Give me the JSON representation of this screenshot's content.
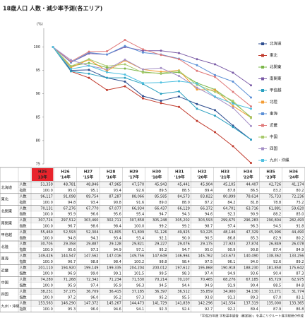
{
  "chart_data": {
    "type": "line",
    "title": "18歳人口 人数・減少率予測(各エリア)",
    "y_unit": "(%)",
    "categories": [
      "H25",
      "H26",
      "H27",
      "H28",
      "H29",
      "H30",
      "H31",
      "H32",
      "H33",
      "H34",
      "H35",
      "H36"
    ],
    "category_years": [
      "13年",
      "'14年",
      "'15年",
      "'16年",
      "'17年",
      "'18年",
      "'19年",
      "'20年",
      "'21年",
      "'22年",
      "'23年",
      "'24年"
    ],
    "ylim": [
      75,
      104
    ],
    "yticks": [
      75,
      80,
      85,
      90,
      95,
      100
    ],
    "grid": false,
    "legend": "right",
    "series": [
      {
        "name": "北海道",
        "color": "#2e4d8f",
        "values": [
          100.0,
          95.0,
          95.1,
          93.4,
          92.6,
          89.5,
          88.5,
          89.4,
          87.8,
          86.5,
          83.2,
          80.2
        ]
      },
      {
        "name": "東北",
        "color": "#c0392b",
        "values": [
          100.0,
          94.8,
          93.4,
          90.8,
          91.6,
          89.0,
          88.0,
          87.2,
          84.2,
          81.8,
          78.8,
          75.2
        ]
      },
      {
        "name": "北関東",
        "color": "#7ab648",
        "values": [
          100.0,
          95.9,
          96.6,
          95.6,
          95.4,
          94.7,
          94.3,
          94.6,
          92.3,
          90.9,
          88.2,
          85.0
        ]
      },
      {
        "name": "南関東",
        "color": "#7a5aa6",
        "values": [
          100.0,
          96.7,
          98.6,
          98.4,
          100.0,
          99.2,
          99.2,
          98.7,
          97.4,
          96.3,
          94.5,
          91.8
        ]
      },
      {
        "name": "甲信越",
        "color": "#2aa0c0",
        "values": [
          100.0,
          94.8,
          94.3,
          93.4,
          93.4,
          92.1,
          90.0,
          90.5,
          86.8,
          85.3,
          82.9,
          80.2
        ]
      },
      {
        "name": "北陸",
        "color": "#f39c34",
        "values": [
          100.0,
          95.6,
          97.3,
          94.9,
          97.1,
          95.2,
          94.7,
          95.0,
          90.9,
          90.8,
          87.4,
          84.9
        ]
      },
      {
        "name": "東海",
        "color": "#5b8fd6",
        "values": [
          100.0,
          96.7,
          98.8,
          98.4,
          100.2,
          98.8,
          98.4,
          97.5,
          96.1,
          94.0,
          92.6,
          89.2
        ]
      },
      {
        "name": "近畿",
        "color": "#e07a7a",
        "values": [
          100.0,
          96.9,
          99.0,
          99.1,
          101.5,
          99.5,
          98.3,
          97.4,
          94.9,
          93.6,
          90.4,
          87.3
        ]
      },
      {
        "name": "中国",
        "color": "#a7c96a",
        "values": [
          100.0,
          95.9,
          97.4,
          95.9,
          96.3,
          94.5,
          94.4,
          94.9,
          91.9,
          90.4,
          88.5,
          84.8
        ]
      },
      {
        "name": "四国",
        "color": "#a48fc6",
        "values": [
          100.0,
          97.2,
          96.0,
          95.2,
          97.3,
          95.2,
          95.5,
          93.8,
          91.3,
          89.3,
          87.0,
          83.1
        ]
      },
      {
        "name": "九州・沖縄",
        "color": "#4fc0e0",
        "values": [
          100.0,
          95.3,
          96.0,
          94.6,
          94.1,
          92.3,
          92.4,
          92.7,
          92.2,
          89.4,
          87.9,
          86.8
        ]
      }
    ]
  },
  "table": {
    "row_labels": [
      "人数",
      "指数"
    ],
    "rows": [
      {
        "count": [
          "51,359",
          "48,781",
          "48,846",
          "47,965",
          "47,570",
          "45,943",
          "45,441",
          "45,904",
          "45,105",
          "44,407",
          "42,726",
          "41,174"
        ],
        "index": [
          "100.0",
          "95.0",
          "95.1",
          "93.4",
          "92.6",
          "89.5",
          "88.5",
          "89.4",
          "87.8",
          "86.5",
          "83.2",
          "80.2"
        ]
      },
      {
        "count": [
          "96,117",
          "91,098",
          "89,754",
          "87,287",
          "88,066",
          "85,585",
          "84,573",
          "83,822",
          "80,899",
          "78,614",
          "75,733",
          "72,236"
        ],
        "index": [
          "100.0",
          "94.8",
          "93.4",
          "90.8",
          "91.6",
          "89.0",
          "88.0",
          "87.2",
          "84.2",
          "81.8",
          "78.8",
          "75.2"
        ]
      },
      {
        "count": [
          "70,131",
          "67,276",
          "67,770",
          "67,077",
          "66,934",
          "66,437",
          "66,129",
          "66,372",
          "64,701",
          "63,716",
          "61,881",
          "59,620"
        ],
        "index": [
          "100.0",
          "95.9",
          "96.6",
          "95.6",
          "95.4",
          "94.7",
          "94.3",
          "94.6",
          "92.3",
          "90.9",
          "88.2",
          "85.0"
        ]
      },
      {
        "count": [
          "307,724",
          "297,512",
          "303,460",
          "302,711",
          "307,858",
          "305,248",
          "305,202",
          "303,593",
          "299,675",
          "296,283",
          "290,804",
          "282,493"
        ],
        "index": [
          "100.0",
          "96.7",
          "98.6",
          "98.4",
          "100.0",
          "99.2",
          "99.2",
          "98.7",
          "97.4",
          "96.3",
          "94.5",
          "91.8"
        ]
      },
      {
        "count": [
          "55,469",
          "52,593",
          "52,304",
          "51,805",
          "51,809",
          "51,126",
          "49,925",
          "50,225",
          "48,146",
          "47,329",
          "45,996",
          "44,490"
        ],
        "index": [
          "100.0",
          "94.8",
          "94.3",
          "93.4",
          "93.4",
          "92.1",
          "90.0",
          "90.5",
          "86.8",
          "85.3",
          "82.9",
          "80.2"
        ]
      },
      {
        "count": [
          "30,705",
          "29,358",
          "29,887",
          "29,128",
          "29,821",
          "29,227",
          "29,076",
          "29,175",
          "27,923",
          "27,874",
          "26,849",
          "26,078"
        ],
        "index": [
          "100.0",
          "95.6",
          "97.3",
          "94.9",
          "97.1",
          "95.2",
          "94.7",
          "95.0",
          "90.9",
          "90.8",
          "87.4",
          "84.9"
        ]
      },
      {
        "count": [
          "149,426",
          "144,547",
          "147,562",
          "147,016",
          "149,756",
          "147,649",
          "146,964",
          "145,762",
          "143,673",
          "140,490",
          "138,362",
          "133,256"
        ],
        "index": [
          "100.0",
          "96.7",
          "98.8",
          "98.4",
          "100.2",
          "98.8",
          "98.4",
          "97.5",
          "96.1",
          "94.0",
          "92.6",
          "89.2"
        ]
      },
      {
        "count": [
          "201,110",
          "194,920",
          "199,149",
          "199,335",
          "204,204",
          "200,012",
          "197,612",
          "195,868",
          "190,918",
          "188,230",
          "181,858",
          "175,642"
        ],
        "index": [
          "100.0",
          "96.9",
          "99.0",
          "99.1",
          "101.5",
          "99.5",
          "98.3",
          "97.4",
          "94.9",
          "93.6",
          "90.4",
          "87.3"
        ]
      },
      {
        "count": [
          "74,280",
          "71,268",
          "72,342",
          "71,234",
          "71,530",
          "70,214",
          "70,107",
          "70,465",
          "68,276",
          "67,185",
          "65,729",
          "62,975"
        ],
        "index": [
          "100.0",
          "95.9",
          "97.4",
          "95.9",
          "96.3",
          "94.5",
          "94.4",
          "94.9",
          "91.9",
          "90.4",
          "88.5",
          "84.8"
        ]
      },
      {
        "count": [
          "38,231",
          "37,175",
          "36,709",
          "36,415",
          "37,185",
          "36,397",
          "36,512",
          "35,859",
          "34,900",
          "34,130",
          "33,271",
          "31,774"
        ],
        "index": [
          "100.0",
          "97.2",
          "96.0",
          "95.2",
          "97.3",
          "95.2",
          "95.5",
          "93.8",
          "91.3",
          "89.3",
          "87.0",
          "83.1"
        ]
      },
      {
        "count": [
          "153,563",
          "146,290",
          "147,372",
          "145,267",
          "144,473",
          "141,729",
          "141,839",
          "142,296",
          "141,554",
          "137,319",
          "135,000",
          "133,365"
        ],
        "index": [
          "100.0",
          "95.3",
          "96.0",
          "94.6",
          "94.1",
          "92.3",
          "92.4",
          "92.7",
          "92.2",
          "89.4",
          "87.9",
          "86.8"
        ]
      }
    ]
  },
  "footnote": "「平成25年度 学校基本調査（確定版）」を基にリクルート進学総研が作成"
}
